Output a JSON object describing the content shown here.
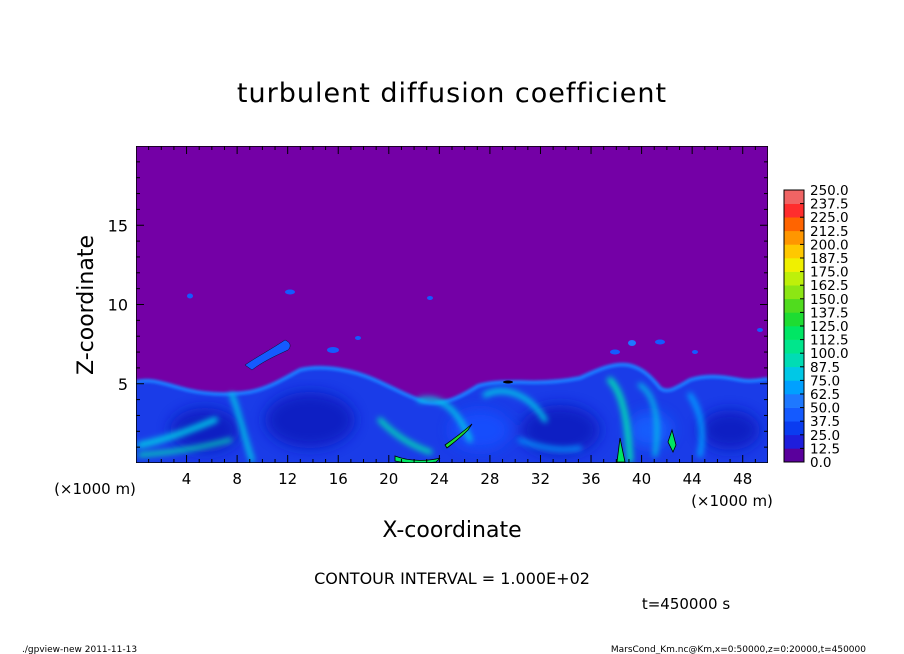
{
  "chart_data": {
    "type": "heatmap",
    "title": "turbulent diffusion coefficient",
    "xlabel": "X-coordinate",
    "ylabel": "Z-coordinate",
    "x_unit": "(×1000 m)",
    "y_unit": "(×1000 m)",
    "xlim": [
      0,
      50
    ],
    "ylim": [
      0,
      20
    ],
    "x_ticks": [
      "4",
      "8",
      "12",
      "16",
      "20",
      "24",
      "28",
      "32",
      "36",
      "40",
      "44",
      "48"
    ],
    "y_ticks": [
      "5",
      "10",
      "15"
    ],
    "colorbar": {
      "levels": [
        "0.0",
        "12.5",
        "25.0",
        "37.5",
        "50.0",
        "62.5",
        "75.0",
        "87.5",
        "100.0",
        "112.5",
        "125.0",
        "137.5",
        "150.0",
        "162.5",
        "175.0",
        "187.5",
        "200.0",
        "212.5",
        "225.0",
        "237.5",
        "250.0"
      ],
      "colors": [
        "#5a009c",
        "#1e1edc",
        "#0a3cf0",
        "#145aff",
        "#1e78ff",
        "#00a0ff",
        "#00c8e6",
        "#00dcb4",
        "#00e68c",
        "#00e664",
        "#1edc32",
        "#50dc1e",
        "#8ce614",
        "#bef00a",
        "#f0f000",
        "#ffc800",
        "#ff9600",
        "#ff6400",
        "#ff2d2d",
        "#f06464"
      ]
    },
    "background_color": "#7400a6",
    "contour_interval": "CONTOUR INTERVAL = 1.000E+02",
    "time_label": "t=450000 s"
  },
  "footer": {
    "program": "./gpview-new   2011-11-13",
    "source": "MarsCond_Km.nc@Km,x=0:50000,z=0:20000,t=450000"
  }
}
